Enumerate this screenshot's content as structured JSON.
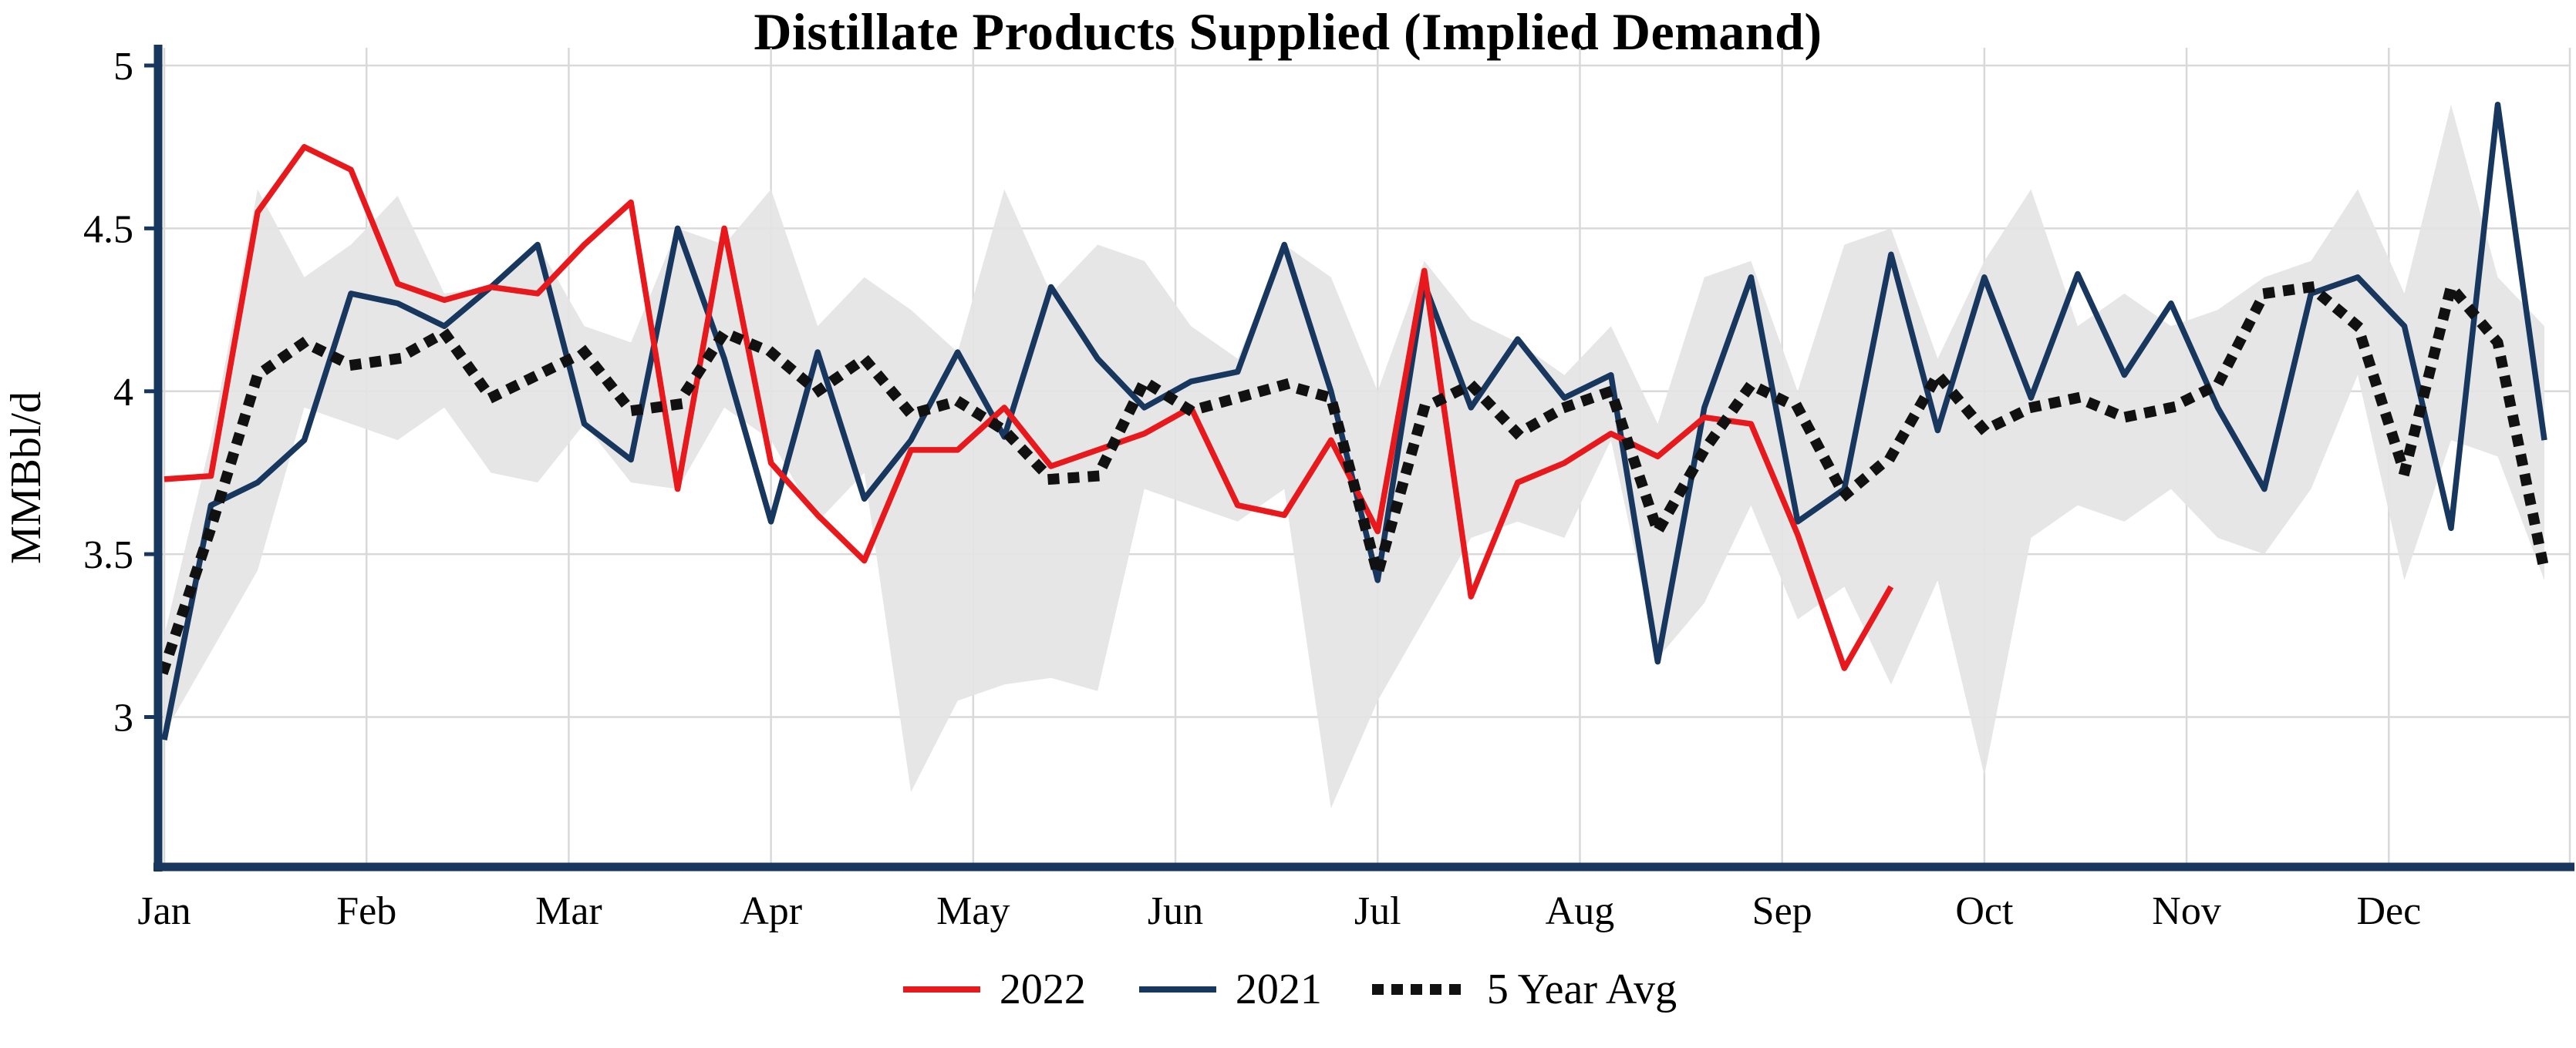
{
  "chart_data": {
    "type": "line",
    "title": "Distillate Products Supplied (Implied Demand)",
    "ylabel": "MMBbl/d",
    "x_unit": "weekly",
    "weeks": 52,
    "months": [
      "Jan",
      "Feb",
      "Mar",
      "Apr",
      "May",
      "Jun",
      "Jul",
      "Aug",
      "Sep",
      "Oct",
      "Nov",
      "Dec"
    ],
    "yticks": [
      3,
      3.5,
      4,
      4.5,
      5
    ],
    "ytick_labels": [
      "3",
      "3.5",
      "4",
      "4.5",
      "5"
    ],
    "ylim": [
      2.54,
      5.05
    ],
    "grid": true,
    "grid_color": "#d9d9d9",
    "axis_color": "#17375e",
    "legend_position": "bottom",
    "range_band": {
      "color": "#e4e4e4",
      "upper": [
        3.25,
        3.85,
        4.62,
        4.35,
        4.45,
        4.6,
        4.3,
        4.32,
        4.45,
        4.2,
        4.15,
        4.5,
        4.45,
        4.62,
        4.2,
        4.35,
        4.25,
        4.12,
        4.62,
        4.3,
        4.45,
        4.4,
        4.2,
        4.1,
        4.45,
        4.35,
        4.0,
        4.4,
        4.22,
        4.15,
        4.05,
        4.2,
        3.9,
        4.35,
        4.4,
        4.0,
        4.45,
        4.5,
        4.1,
        4.4,
        4.62,
        4.2,
        4.3,
        4.2,
        4.25,
        4.35,
        4.4,
        4.62,
        4.3,
        4.88,
        4.35,
        4.2
      ],
      "lower": [
        2.95,
        3.2,
        3.45,
        3.95,
        3.9,
        3.85,
        3.95,
        3.75,
        3.72,
        3.9,
        3.72,
        3.7,
        3.95,
        3.85,
        3.6,
        3.75,
        2.77,
        3.05,
        3.1,
        3.12,
        3.08,
        3.7,
        3.65,
        3.6,
        3.7,
        2.72,
        3.05,
        3.3,
        3.55,
        3.6,
        3.55,
        3.85,
        3.18,
        3.35,
        3.65,
        3.3,
        3.4,
        3.1,
        3.42,
        2.82,
        3.55,
        3.65,
        3.6,
        3.7,
        3.55,
        3.5,
        3.7,
        4.05,
        3.42,
        3.85,
        3.8,
        3.42
      ]
    },
    "series": [
      {
        "name": "2022",
        "color": "#e8191c",
        "style": "solid",
        "values": [
          3.73,
          3.74,
          4.55,
          4.75,
          4.68,
          4.33,
          4.28,
          4.32,
          4.3,
          4.45,
          4.58,
          3.7,
          4.5,
          3.78,
          3.62,
          3.48,
          3.82,
          3.82,
          3.95,
          3.77,
          3.82,
          3.87,
          3.95,
          3.65,
          3.62,
          3.85,
          3.57,
          4.37,
          3.37,
          3.72,
          3.78,
          3.87,
          3.8,
          3.92,
          3.9,
          3.56,
          3.15,
          3.4
        ]
      },
      {
        "name": "2021",
        "color": "#17375e",
        "style": "solid",
        "values": [
          2.93,
          3.65,
          3.72,
          3.85,
          4.3,
          4.27,
          4.2,
          4.32,
          4.45,
          3.9,
          3.79,
          4.5,
          4.1,
          3.6,
          4.12,
          3.67,
          3.85,
          4.12,
          3.86,
          4.32,
          4.1,
          3.95,
          4.03,
          4.06,
          4.45,
          4.0,
          3.42,
          4.33,
          3.95,
          4.16,
          3.98,
          4.05,
          3.17,
          3.95,
          4.35,
          3.6,
          3.7,
          4.42,
          3.88,
          4.35,
          3.98,
          4.36,
          4.05,
          4.27,
          3.95,
          3.7,
          4.3,
          4.35,
          4.2,
          3.58,
          4.88,
          3.85
        ]
      },
      {
        "name": "5 Year Avg",
        "color": "#111111",
        "style": "dotted",
        "values": [
          3.15,
          3.58,
          4.05,
          4.15,
          4.08,
          4.1,
          4.18,
          3.98,
          4.05,
          4.12,
          3.94,
          3.96,
          4.18,
          4.12,
          4.0,
          4.1,
          3.93,
          3.97,
          3.88,
          3.73,
          3.74,
          4.03,
          3.94,
          3.98,
          4.02,
          3.98,
          3.44,
          3.95,
          4.02,
          3.87,
          3.95,
          4.0,
          3.57,
          3.82,
          4.02,
          3.95,
          3.68,
          3.8,
          4.05,
          3.88,
          3.95,
          3.98,
          3.92,
          3.95,
          4.02,
          4.3,
          4.32,
          4.2,
          3.75,
          4.32,
          4.15,
          3.45
        ]
      }
    ]
  }
}
